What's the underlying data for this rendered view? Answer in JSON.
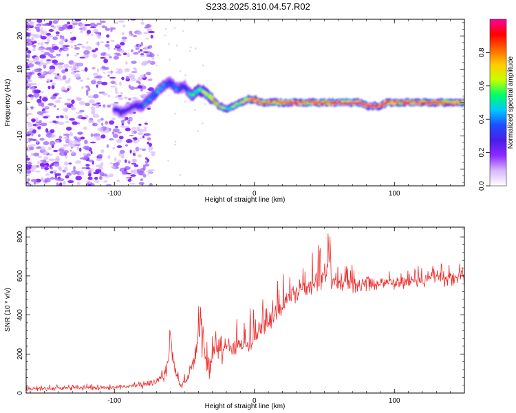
{
  "title": "S233.2025.310.04.57.R02",
  "colors": {
    "snr_line": "#ee2b2b",
    "spectrogram_low": "#7a1cff",
    "frame": "#000000"
  },
  "chart_data": [
    {
      "type": "heatmap",
      "name": "spectrogram",
      "xlabel": "Height of straight line (km)",
      "ylabel": "Frequency (Hz)",
      "xlim": [
        -163,
        150
      ],
      "ylim": [
        -25,
        25
      ],
      "x_ticks": [
        -100,
        0,
        100
      ],
      "y_ticks": [
        -20,
        -10,
        0,
        10,
        20
      ],
      "colorbar": {
        "label": "Normalized spectral amplitude",
        "range": [
          0,
          1
        ],
        "ticks": [
          0.0,
          0.2,
          0.4,
          0.6,
          0.8
        ],
        "tick_labels": [
          "0.0",
          "0.2",
          "0.4",
          "0.6",
          "0.8"
        ],
        "colormap": [
          "#ffffff",
          "#d8b8ff",
          "#8c2bff",
          "#4a1ee8",
          "#1e4dff",
          "#00c8ff",
          "#00ff66",
          "#c8ff00",
          "#ffcc00",
          "#ff6600",
          "#ff0000",
          "#ff0099"
        ]
      },
      "noise_region_x": [
        -163,
        -80
      ],
      "ridge": {
        "x": [
          -100,
          -95,
          -90,
          -85,
          -80,
          -75,
          -70,
          -65,
          -60,
          -55,
          -50,
          -45,
          -40,
          -35,
          -30,
          -25,
          -20,
          -15,
          -10,
          -5,
          0,
          5,
          10,
          20,
          30,
          40,
          50,
          60,
          70,
          75,
          80,
          85,
          90,
          95,
          100,
          110,
          120,
          130,
          140,
          150
        ],
        "freq": [
          -2,
          -3,
          -2,
          -1,
          -1,
          1,
          3,
          5,
          6,
          4,
          5,
          2,
          4,
          3,
          1,
          -1,
          -2,
          -1,
          0,
          1,
          1,
          0,
          0,
          0,
          0,
          0,
          0,
          0,
          0,
          0,
          -1,
          -1,
          -1,
          0,
          0,
          0,
          0,
          0,
          0,
          0
        ],
        "amplitude": [
          0.25,
          0.3,
          0.25,
          0.3,
          0.35,
          0.4,
          0.45,
          0.4,
          0.35,
          0.4,
          0.3,
          0.5,
          0.55,
          0.6,
          0.75,
          0.7,
          0.5,
          0.6,
          0.65,
          0.75,
          0.9,
          0.85,
          0.8,
          0.9,
          0.9,
          0.85,
          0.9,
          0.95,
          0.95,
          0.9,
          0.9,
          0.95,
          0.85,
          0.9,
          0.85,
          0.9,
          0.85,
          0.85,
          0.8,
          0.8
        ]
      }
    },
    {
      "type": "line",
      "name": "snr",
      "xlabel": "Height of straight line (km)",
      "ylabel": "SNR (10 * v/v)",
      "xlim": [
        -163,
        150
      ],
      "ylim": [
        0,
        850
      ],
      "x_ticks": [
        -100,
        0,
        100
      ],
      "y_ticks": [
        0,
        200,
        400,
        600,
        800
      ],
      "series": [
        {
          "name": "SNR",
          "x": [
            -163,
            -140,
            -120,
            -100,
            -80,
            -70,
            -65,
            -62,
            -60,
            -58,
            -56,
            -52,
            -48,
            -44,
            -42,
            -40,
            -38,
            -36,
            -34,
            -32,
            -30,
            -28,
            -25,
            -20,
            -15,
            -10,
            -5,
            0,
            5,
            10,
            15,
            20,
            25,
            30,
            35,
            40,
            45,
            50,
            52,
            53,
            54,
            55,
            56,
            58,
            60,
            70,
            80,
            90,
            100,
            110,
            120,
            130,
            140,
            150
          ],
          "mean": [
            25,
            25,
            28,
            30,
            40,
            60,
            90,
            150,
            300,
            170,
            100,
            40,
            80,
            150,
            200,
            300,
            400,
            250,
            180,
            80,
            200,
            250,
            200,
            250,
            230,
            250,
            250,
            300,
            320,
            380,
            420,
            450,
            500,
            520,
            540,
            560,
            580,
            600,
            620,
            700,
            680,
            560,
            560,
            570,
            570,
            560,
            570,
            565,
            570,
            575,
            580,
            585,
            590,
            600
          ],
          "peak": [
            45,
            45,
            48,
            50,
            60,
            100,
            140,
            230,
            370,
            230,
            150,
            80,
            160,
            280,
            350,
            450,
            545,
            450,
            320,
            180,
            320,
            380,
            350,
            380,
            370,
            400,
            420,
            460,
            490,
            550,
            580,
            620,
            650,
            680,
            700,
            720,
            760,
            800,
            840,
            830,
            820,
            780,
            720,
            680,
            670,
            660,
            650,
            650,
            650,
            650,
            660,
            660,
            670,
            680
          ],
          "low": [
            10,
            10,
            12,
            14,
            20,
            30,
            45,
            80,
            200,
            100,
            60,
            20,
            40,
            60,
            100,
            150,
            200,
            120,
            60,
            40,
            120,
            150,
            140,
            150,
            160,
            170,
            190,
            220,
            260,
            310,
            360,
            390,
            440,
            460,
            480,
            500,
            520,
            530,
            460,
            320,
            380,
            480,
            500,
            510,
            510,
            510,
            520,
            520,
            525,
            530,
            535,
            540,
            545,
            550
          ]
        }
      ]
    }
  ]
}
